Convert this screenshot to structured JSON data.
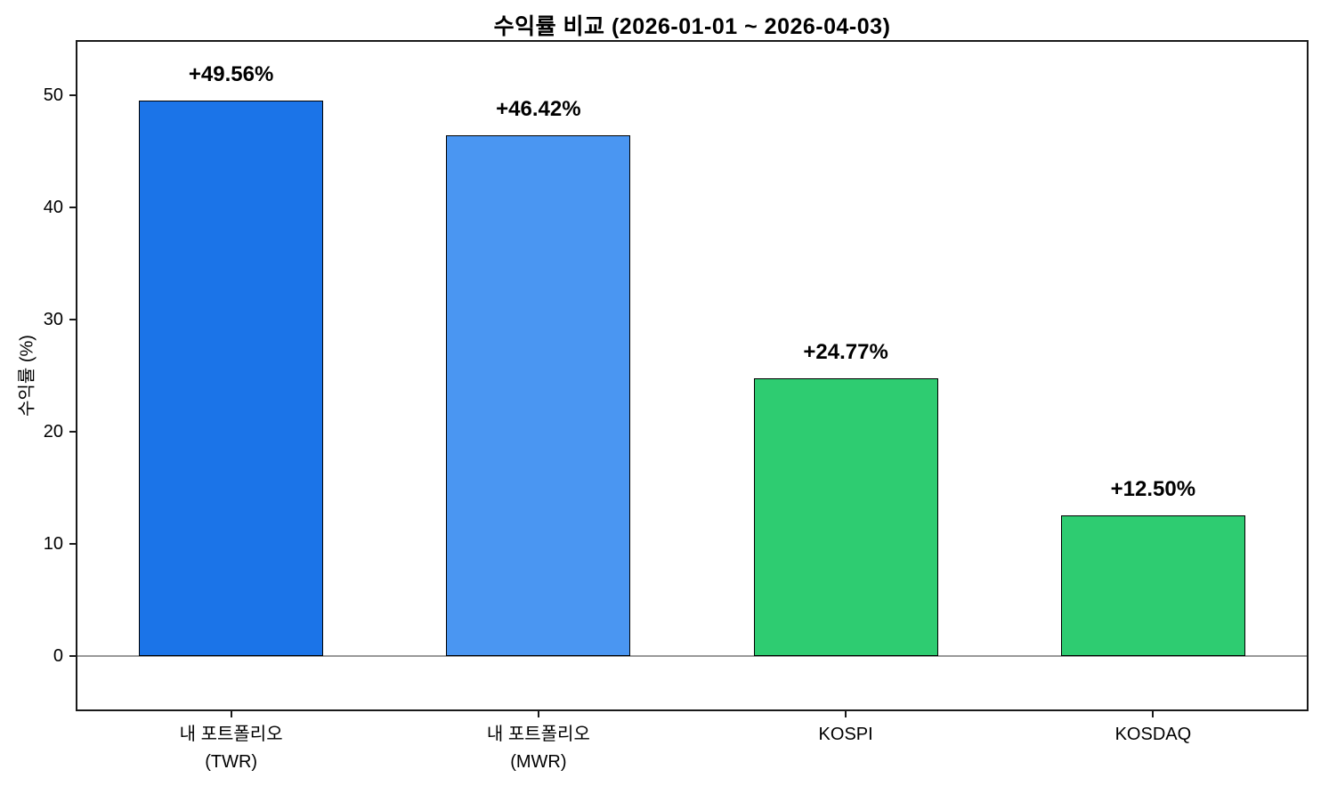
{
  "chart_data": {
    "type": "bar",
    "title": "수익률 비교 (2026-01-01 ~ 2026-04-03)",
    "categories": [
      "내 포트폴리오\n(TWR)",
      "내 포트폴리오\n(MWR)",
      "KOSPI",
      "KOSDAQ"
    ],
    "values": [
      49.56,
      46.42,
      24.77,
      12.5
    ],
    "bar_labels": [
      "+49.56%",
      "+46.42%",
      "+24.77%",
      "+12.50%"
    ],
    "bar_colors": [
      "#1B74E8",
      "#4A96F2",
      "#2ECC71",
      "#2ECC71"
    ],
    "bar_edge_color": "#000000",
    "xlabel": "",
    "ylabel": "수익률 (%)",
    "ylim": [
      -4.8,
      54.8
    ],
    "yticks": [
      0,
      10,
      20,
      30,
      40,
      50
    ],
    "grid": false,
    "legend": null,
    "plot_background": "#ffffff",
    "spine_color": "#1a1a1a",
    "zero_line_color": "#999999"
  }
}
